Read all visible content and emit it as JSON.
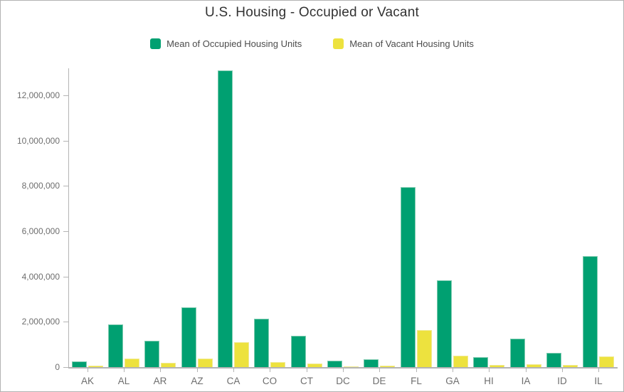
{
  "chart_data": {
    "type": "bar",
    "title": "U.S. Housing - Occupied or Vacant",
    "categories": [
      "AK",
      "AL",
      "AR",
      "AZ",
      "CA",
      "CO",
      "CT",
      "DC",
      "DE",
      "FL",
      "GA",
      "HI",
      "IA",
      "ID",
      "IL"
    ],
    "series": [
      {
        "name": "Mean of Occupied Housing Units",
        "color": "#00a071",
        "border_color": "#7fcbb0",
        "values": [
          250000,
          1880000,
          1150000,
          2640000,
          13120000,
          2130000,
          1380000,
          280000,
          360000,
          7940000,
          3830000,
          450000,
          1270000,
          640000,
          4900000
        ]
      },
      {
        "name": "Mean of Vacant Housing Units",
        "color": "#ede23e",
        "border_color": "#f0e98e",
        "values": [
          70000,
          390000,
          190000,
          380000,
          1100000,
          220000,
          150000,
          30000,
          60000,
          1630000,
          490000,
          80000,
          140000,
          100000,
          460000
        ]
      }
    ],
    "xlabel": "",
    "ylabel": "",
    "ylim": [
      0,
      13200000
    ],
    "ytick_interval": 2000000,
    "ytick_labels": [
      "0",
      "2,000,000",
      "4,000,000",
      "6,000,000",
      "8,000,000",
      "10,000,000",
      "12,000,000"
    ],
    "grid": "off",
    "legend_position": "top"
  },
  "colors": {
    "axis": "#b4b4b4",
    "tick_label": "#6e6e6e",
    "title_text": "#323232",
    "legend_text": "#4c4c4c",
    "frame_border": "#b3b3b3",
    "background": "#ffffff"
  }
}
